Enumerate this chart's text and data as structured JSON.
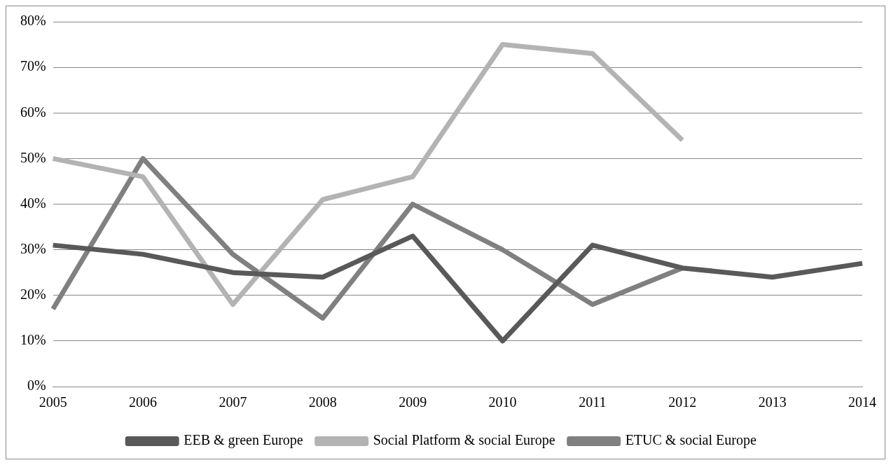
{
  "chart_data": {
    "type": "line",
    "categories": [
      "2005",
      "2006",
      "2007",
      "2008",
      "2009",
      "2010",
      "2011",
      "2012",
      "2013",
      "2014"
    ],
    "series": [
      {
        "name": "EEB & green Europe",
        "color": "#595959",
        "values": [
          31,
          29,
          25,
          24,
          33,
          10,
          31,
          26,
          24,
          27
        ]
      },
      {
        "name": "Social Platform & social Europe",
        "color": "#b3b3b3",
        "values": [
          50,
          46,
          18,
          41,
          46,
          75,
          73,
          54,
          null,
          null
        ]
      },
      {
        "name": "ETUC & social Europe",
        "color": "#808080",
        "values": [
          17,
          50,
          29,
          15,
          40,
          30,
          18,
          26,
          null,
          null
        ]
      }
    ],
    "ylim": [
      0,
      80
    ],
    "yticks": [
      {
        "value": 0,
        "label": "0%"
      },
      {
        "value": 10,
        "label": "10%"
      },
      {
        "value": 20,
        "label": "20%"
      },
      {
        "value": 30,
        "label": "30%"
      },
      {
        "value": 40,
        "label": "40%"
      },
      {
        "value": 50,
        "label": "50%"
      },
      {
        "value": 60,
        "label": "60%"
      },
      {
        "value": 70,
        "label": "70%"
      },
      {
        "value": 80,
        "label": "80%"
      }
    ],
    "grid": "y",
    "legend": "bottom",
    "marker": "none",
    "line_style": "solid"
  }
}
